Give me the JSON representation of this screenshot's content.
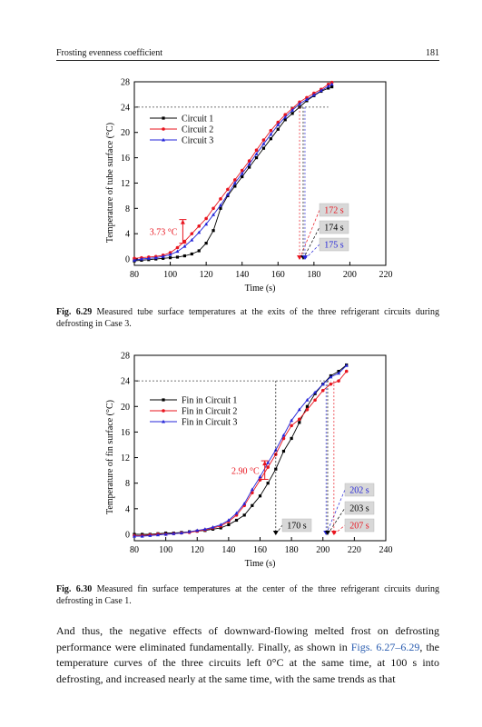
{
  "header": {
    "title": "Frosting evenness coefficient",
    "page": "181"
  },
  "figures": [
    {
      "caption_id": "Fig. 6.29",
      "caption_text": "Measured tube surface temperatures at the exits of the three refrigerant circuits during defrosting in Case 3.",
      "annotation_delta": "3.73 °C",
      "callouts": [
        "172 s",
        "174 s",
        "175 s"
      ]
    },
    {
      "caption_id": "Fig. 6.30",
      "caption_text": "Measured fin surface temperatures at the center of the three refrigerant circuits during defrosting in Case 1.",
      "annotation_delta": "2.90 °C",
      "callouts": [
        "202 s",
        "203 s",
        "170 s",
        "207 s"
      ]
    }
  ],
  "body": {
    "text_before": "And thus, the negative effects of downward-flowing melted frost on defrosting performance were eliminated fundamentally. Finally, as shown in ",
    "link": "Figs. 6.27–6.29",
    "text_after": ", the temperature curves of the three circuits left 0°C at the same time, at 100 s into defrosting, and increased nearly at the same time, with the same trends as that"
  },
  "chart_data": [
    {
      "type": "line",
      "xlabel": "Time (s)",
      "ylabel": "Temperature of tube surface (°C)",
      "xlim": [
        80,
        220
      ],
      "ylim": [
        -1,
        28
      ],
      "xticks": [
        80,
        100,
        120,
        140,
        160,
        180,
        200,
        220
      ],
      "yticks": [
        0,
        4,
        8,
        12,
        16,
        20,
        24,
        28
      ],
      "legend": "upper-left",
      "series": [
        {
          "name": "Circuit 1",
          "color": "#000000",
          "marker": "square",
          "x": [
            80,
            84,
            88,
            92,
            96,
            100,
            104,
            108,
            112,
            116,
            120,
            124,
            128,
            132,
            136,
            140,
            144,
            148,
            152,
            156,
            160,
            164,
            168,
            172,
            176,
            180,
            184,
            188,
            190
          ],
          "y": [
            -0.3,
            -0.2,
            -0.1,
            0,
            0.1,
            0.2,
            0.3,
            0.5,
            0.8,
            1.3,
            2.5,
            4.5,
            8.0,
            10.0,
            11.5,
            13.0,
            14.5,
            16.0,
            17.5,
            19.0,
            20.5,
            22.0,
            23.0,
            24.0,
            25.0,
            25.8,
            26.5,
            27.0,
            27.2
          ]
        },
        {
          "name": "Circuit 2",
          "color": "#e8141e",
          "marker": "circle",
          "x": [
            80,
            84,
            88,
            92,
            96,
            100,
            104,
            108,
            112,
            116,
            120,
            124,
            128,
            132,
            136,
            140,
            144,
            148,
            152,
            156,
            160,
            164,
            168,
            172,
            176,
            180,
            184,
            188,
            190
          ],
          "y": [
            0.1,
            0.2,
            0.3,
            0.4,
            0.6,
            1.0,
            1.8,
            2.8,
            4.0,
            5.2,
            6.4,
            8.0,
            9.5,
            11.0,
            12.5,
            14.0,
            15.5,
            17.2,
            18.8,
            20.3,
            21.6,
            22.8,
            23.8,
            24.8,
            25.5,
            26.2,
            26.8,
            27.6,
            27.9
          ]
        },
        {
          "name": "Circuit 3",
          "color": "#2424d8",
          "marker": "triangle",
          "x": [
            80,
            84,
            88,
            92,
            96,
            100,
            104,
            108,
            112,
            116,
            120,
            124,
            128,
            132,
            136,
            140,
            144,
            148,
            152,
            156,
            160,
            164,
            168,
            172,
            176,
            180,
            184,
            188,
            190
          ],
          "y": [
            -0.2,
            0,
            0.1,
            0.2,
            0.4,
            0.7,
            1.2,
            2.0,
            3.0,
            4.2,
            5.5,
            7.0,
            8.5,
            10.2,
            12.0,
            13.5,
            15.0,
            16.6,
            18.2,
            19.7,
            21.2,
            22.4,
            23.5,
            24.5,
            25.2,
            25.9,
            26.6,
            27.3,
            27.6
          ]
        }
      ]
    },
    {
      "type": "line",
      "xlabel": "Time (s)",
      "ylabel": "Temperature of fin surface (°C)",
      "xlim": [
        80,
        240
      ],
      "ylim": [
        -1,
        28
      ],
      "xticks": [
        80,
        100,
        120,
        140,
        160,
        180,
        200,
        220,
        240
      ],
      "yticks": [
        0,
        4,
        8,
        12,
        16,
        20,
        24,
        28
      ],
      "legend": "upper-left",
      "series": [
        {
          "name": "Fin in Circuit 1",
          "color": "#000000",
          "marker": "square",
          "x": [
            80,
            85,
            90,
            95,
            100,
            105,
            110,
            115,
            120,
            125,
            130,
            135,
            140,
            145,
            150,
            155,
            160,
            165,
            170,
            175,
            180,
            185,
            190,
            195,
            200,
            205,
            210,
            215
          ],
          "y": [
            0,
            0,
            0,
            0.1,
            0.2,
            0.2,
            0.3,
            0.4,
            0.5,
            0.6,
            0.8,
            1.0,
            1.5,
            2.2,
            3.0,
            4.5,
            6.0,
            8.0,
            10.2,
            13.0,
            15.0,
            17.5,
            20.0,
            22.0,
            23.5,
            24.8,
            25.5,
            26.5
          ]
        },
        {
          "name": "Fin in Circuit 2",
          "color": "#e8141e",
          "marker": "circle",
          "x": [
            80,
            85,
            90,
            95,
            100,
            105,
            110,
            115,
            120,
            125,
            130,
            135,
            140,
            145,
            150,
            155,
            160,
            165,
            170,
            175,
            180,
            185,
            190,
            195,
            200,
            205,
            210,
            215
          ],
          "y": [
            -0.2,
            -0.2,
            -0.1,
            0,
            0,
            0.1,
            0.2,
            0.3,
            0.5,
            0.7,
            1.0,
            1.3,
            2.0,
            3.0,
            4.5,
            6.5,
            8.5,
            10.5,
            12.5,
            15.0,
            17.0,
            18.0,
            19.5,
            21.0,
            22.5,
            23.5,
            24.0,
            25.5
          ]
        },
        {
          "name": "Fin in Circuit 3",
          "color": "#2424d8",
          "marker": "triangle",
          "x": [
            80,
            85,
            90,
            95,
            100,
            105,
            110,
            115,
            120,
            125,
            130,
            135,
            140,
            145,
            150,
            155,
            160,
            165,
            170,
            175,
            180,
            185,
            190,
            195,
            200,
            205,
            210,
            215
          ],
          "y": [
            -0.3,
            -0.3,
            -0.2,
            -0.1,
            0,
            0.1,
            0.2,
            0.4,
            0.6,
            0.8,
            1.1,
            1.5,
            2.2,
            3.3,
            4.8,
            7.0,
            9.0,
            11.2,
            13.2,
            15.5,
            17.8,
            19.5,
            21.0,
            22.2,
            23.5,
            24.6,
            25.2,
            26.4
          ]
        }
      ]
    }
  ]
}
